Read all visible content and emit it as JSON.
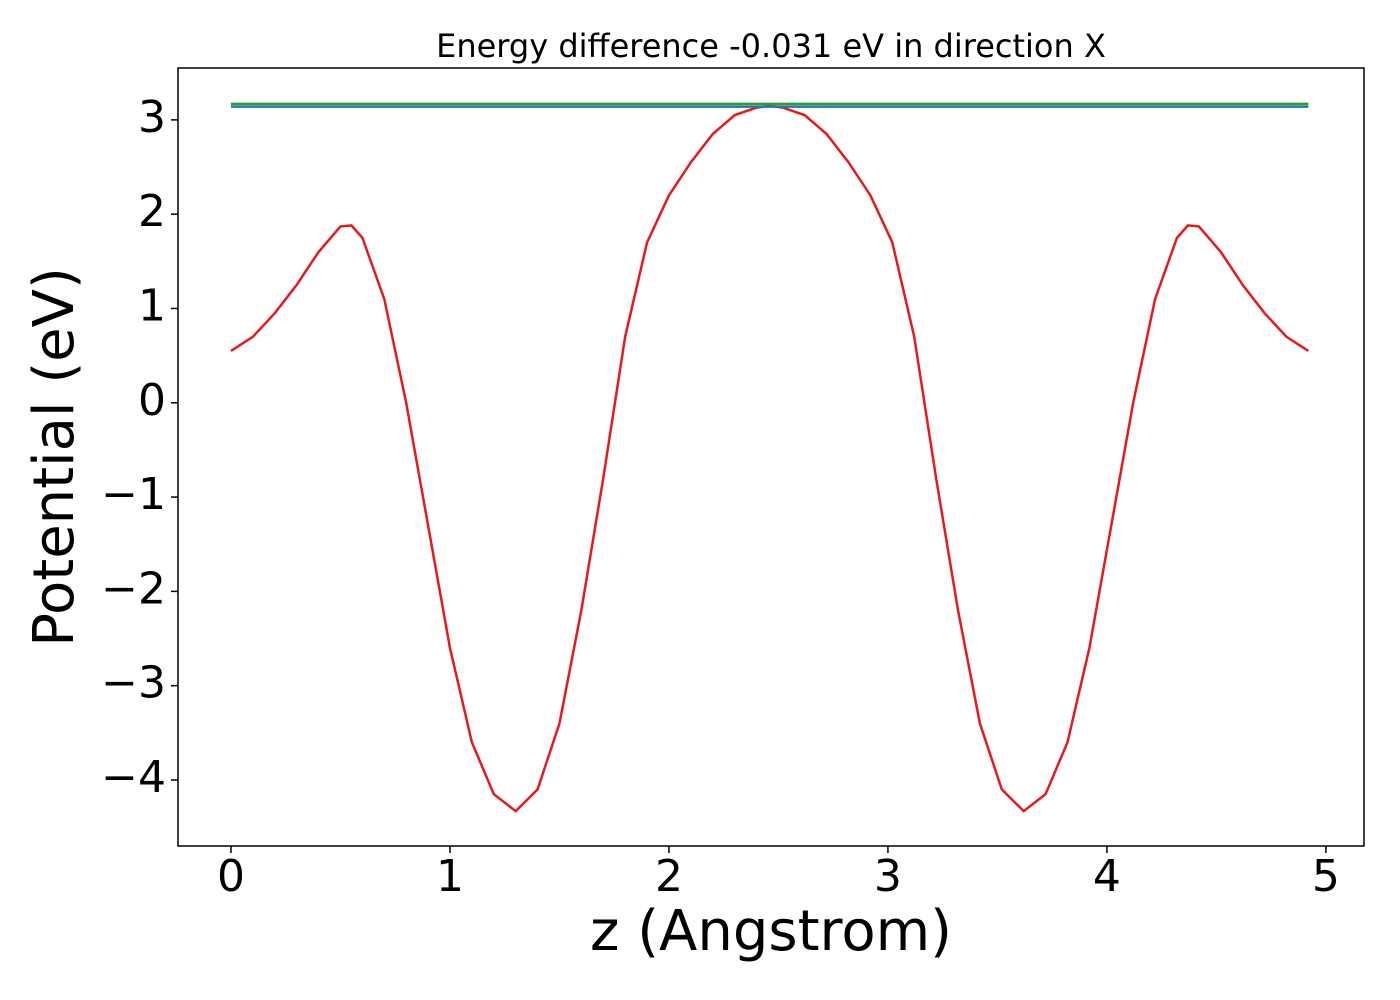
{
  "chart_data": {
    "type": "line",
    "title": "Energy difference -0.031 eV in direction X",
    "xlabel": "z (Angstrom)",
    "ylabel": "Potential (eV)",
    "xlim": [
      -0.242,
      5.174
    ],
    "ylim": [
      -4.7,
      3.55
    ],
    "xticks": [
      0,
      1,
      2,
      3,
      4,
      5
    ],
    "yticks": [
      {
        "value": -4,
        "label": "−4"
      },
      {
        "value": -3,
        "label": "−3"
      },
      {
        "value": -2,
        "label": "−2"
      },
      {
        "value": -1,
        "label": "−1"
      },
      0,
      1,
      2,
      3
    ],
    "series": [
      {
        "color": "#e41a1c",
        "x": [
          0,
          0.1,
          0.2,
          0.3,
          0.4,
          0.5,
          0.55,
          0.6,
          0.7,
          0.8,
          0.9,
          1.0,
          1.1,
          1.2,
          1.3,
          1.4,
          1.5,
          1.6,
          1.7,
          1.8,
          1.9,
          2.0,
          2.1,
          2.2,
          2.3,
          2.4,
          2.46,
          2.52,
          2.62,
          2.72,
          2.82,
          2.92,
          3.02,
          3.12,
          3.22,
          3.32,
          3.42,
          3.52,
          3.62,
          3.72,
          3.82,
          3.92,
          4.02,
          4.12,
          4.22,
          4.32,
          4.37,
          4.42,
          4.52,
          4.62,
          4.72,
          4.82,
          4.92
        ],
        "values": [
          0.55,
          0.7,
          0.95,
          1.25,
          1.6,
          1.87,
          1.88,
          1.75,
          1.1,
          0.0,
          -1.3,
          -2.6,
          -3.6,
          -4.15,
          -4.33,
          -4.1,
          -3.4,
          -2.2,
          -0.8,
          0.7,
          1.7,
          2.2,
          2.55,
          2.85,
          3.05,
          3.13,
          3.15,
          3.13,
          3.05,
          2.85,
          2.55,
          2.2,
          1.7,
          0.7,
          -0.8,
          -2.2,
          -3.4,
          -4.1,
          -4.33,
          -4.15,
          -3.6,
          -2.6,
          -1.3,
          0.0,
          1.1,
          1.75,
          1.88,
          1.87,
          1.6,
          1.25,
          0.95,
          0.7,
          0.55
        ]
      },
      {
        "color": "#2ca02c",
        "x": [
          0,
          4.92
        ],
        "values": [
          3.17,
          3.17
        ]
      },
      {
        "color": "#1f77b4",
        "x": [
          0,
          4.92
        ],
        "values": [
          3.14,
          3.14
        ]
      }
    ]
  }
}
